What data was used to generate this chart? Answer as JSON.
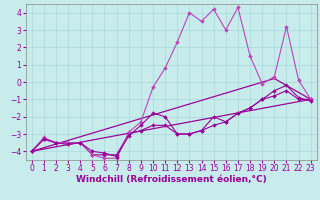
{
  "xlabel": "Windchill (Refroidissement éolien,°C)",
  "xlim": [
    -0.5,
    23.5
  ],
  "ylim": [
    -4.5,
    4.5
  ],
  "xticks": [
    0,
    1,
    2,
    3,
    4,
    5,
    6,
    7,
    8,
    9,
    10,
    11,
    12,
    13,
    14,
    15,
    16,
    17,
    18,
    19,
    20,
    21,
    22,
    23
  ],
  "yticks": [
    -4,
    -3,
    -2,
    -1,
    0,
    1,
    2,
    3,
    4
  ],
  "bg_color": "#c8ecec",
  "grid_color": "#a8d8d8",
  "lc1": "#990099",
  "lc2": "#bb44bb",
  "lw": 0.8,
  "ms": 2.0,
  "s1x": [
    0,
    1,
    2,
    3,
    4,
    5,
    6,
    7,
    8,
    9,
    10,
    11,
    12,
    13,
    14,
    15,
    16,
    17,
    18,
    19,
    20,
    21,
    22,
    23
  ],
  "s1y": [
    -4.0,
    -3.3,
    -3.5,
    -3.5,
    -3.5,
    -4.2,
    -4.2,
    -4.2,
    -3.0,
    -2.8,
    -2.5,
    -2.5,
    -3.0,
    -3.0,
    -2.8,
    -2.5,
    -2.3,
    -1.8,
    -1.5,
    -1.0,
    -0.8,
    -0.5,
    -1.0,
    -1.0
  ],
  "s2x": [
    0,
    1,
    2,
    3,
    4,
    5,
    6,
    7,
    8,
    9,
    10,
    11,
    12,
    13,
    14,
    15,
    16,
    17,
    18,
    19,
    20,
    21,
    22,
    23
  ],
  "s2y": [
    -4.0,
    -3.2,
    -3.5,
    -3.5,
    -3.5,
    -4.2,
    -4.4,
    -4.4,
    -2.9,
    -2.3,
    -0.3,
    0.8,
    2.3,
    4.0,
    3.5,
    4.2,
    3.0,
    4.3,
    1.5,
    -0.1,
    0.3,
    3.2,
    0.1,
    -1.0
  ],
  "s3x": [
    0,
    1,
    2,
    3,
    4,
    5,
    6,
    7,
    8,
    9,
    10,
    11,
    12,
    13,
    14,
    15,
    16,
    17,
    18,
    19,
    20,
    21,
    22,
    23
  ],
  "s3y": [
    -4.0,
    -3.3,
    -3.5,
    -3.6,
    -3.5,
    -4.0,
    -4.1,
    -4.3,
    -3.1,
    -2.5,
    -1.8,
    -2.0,
    -3.0,
    -3.0,
    -2.8,
    -2.0,
    -2.3,
    -1.8,
    -1.5,
    -1.0,
    -0.5,
    -0.2,
    -0.9,
    -1.1
  ],
  "trend1x": [
    0,
    23
  ],
  "trend1y": [
    -4.0,
    -1.0
  ],
  "trend2x": [
    0,
    20,
    23
  ],
  "trend2y": [
    -4.0,
    0.2,
    -1.0
  ],
  "xlabel_fontsize": 6.5,
  "tick_fontsize": 5.5
}
